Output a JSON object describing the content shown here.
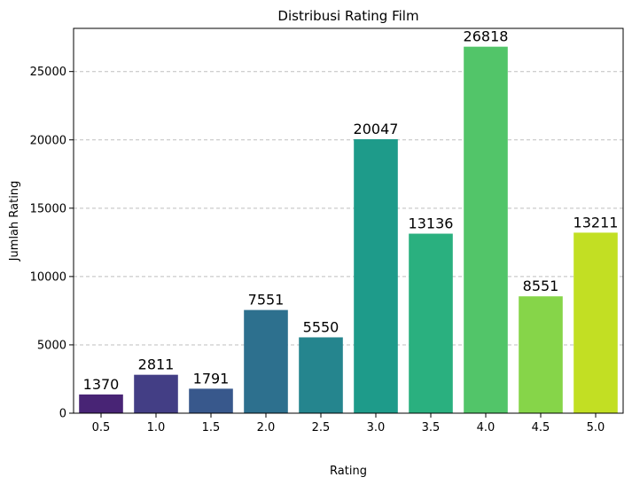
{
  "chart_data": {
    "type": "bar",
    "title": "Distribusi Rating Film",
    "xlabel": "Rating",
    "ylabel": "Jumlah Rating",
    "categories": [
      "0.5",
      "1.0",
      "1.5",
      "2.0",
      "2.5",
      "3.0",
      "3.5",
      "4.0",
      "4.5",
      "5.0"
    ],
    "values": [
      1370,
      2811,
      1791,
      7551,
      5550,
      20047,
      13136,
      26818,
      8551,
      13211
    ],
    "colors": [
      "#482475",
      "#433e85",
      "#38588c",
      "#2d708e",
      "#25858e",
      "#1e9b8a",
      "#2ab07f",
      "#52c569",
      "#86d549",
      "#c2df23"
    ],
    "ylim": [
      0,
      28159
    ],
    "yticks": [
      0,
      5000,
      10000,
      15000,
      20000,
      25000
    ],
    "grid": "y-dashed",
    "legend": "none"
  }
}
